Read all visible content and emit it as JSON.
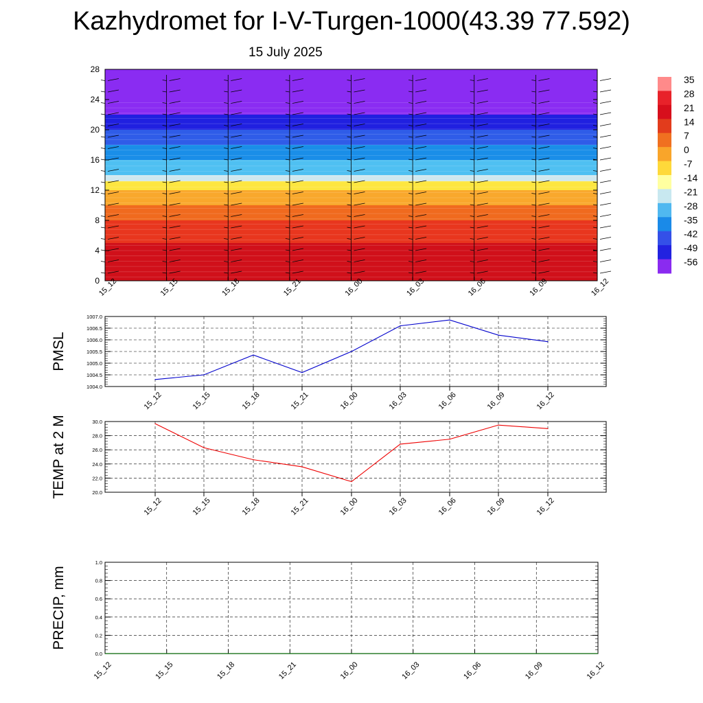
{
  "header": {
    "title": "Kazhydromet for I-V-Turgen-1000(43.39 77.592)",
    "subtitle": "15 July 2025"
  },
  "chart_data": [
    {
      "type": "heatmap",
      "name": "cross-section",
      "y_ticks": [
        "0",
        "4",
        "8",
        "12",
        "16",
        "20",
        "24",
        "28"
      ],
      "ylim": [
        0,
        28
      ],
      "x_ticks": [
        "15_12",
        "15_15",
        "15_18",
        "15_21",
        "16_00",
        "16_03",
        "16_06",
        "16_09",
        "16_12"
      ],
      "colorbar": {
        "labels": [
          "35",
          "28",
          "21",
          "14",
          "7",
          "0",
          "-7",
          "-14",
          "-21",
          "-28",
          "-35",
          "-42",
          "-49",
          "-56"
        ],
        "colors": [
          "#ff8a8a",
          "#e8222a",
          "#d70f1c",
          "#e23c1c",
          "#f07020",
          "#f9a52a",
          "#fed93a",
          "#ffffa0",
          "#c8e8f0",
          "#50b8f0",
          "#1a8ae8",
          "#3450e8",
          "#2222e0",
          "#8a2bf0"
        ]
      },
      "bands": [
        {
          "from": 0,
          "to": 5,
          "color": "#d0101a"
        },
        {
          "from": 5,
          "to": 8,
          "color": "#e8361e"
        },
        {
          "from": 8,
          "to": 10,
          "color": "#f06a1e"
        },
        {
          "from": 10,
          "to": 12,
          "color": "#f9a82c"
        },
        {
          "from": 12,
          "to": 13.2,
          "color": "#fde640"
        },
        {
          "from": 13.2,
          "to": 14,
          "color": "#cfe8ef"
        },
        {
          "from": 14,
          "to": 16,
          "color": "#4fc0f2"
        },
        {
          "from": 16,
          "to": 18,
          "color": "#1a8ee8"
        },
        {
          "from": 18,
          "to": 20,
          "color": "#2f5ce8"
        },
        {
          "from": 20,
          "to": 22,
          "color": "#2020e0"
        },
        {
          "from": 22,
          "to": 28,
          "color": "#8a2cf2"
        }
      ]
    },
    {
      "type": "line",
      "ylabel": "PMSL",
      "categories": [
        "15_12",
        "15_15",
        "15_18",
        "15_21",
        "16_00",
        "16_03",
        "16_06",
        "16_09",
        "16_12"
      ],
      "values": [
        1004.3,
        1004.5,
        1005.35,
        1004.6,
        1005.5,
        1006.6,
        1006.85,
        1006.2,
        1005.92
      ],
      "ylim": [
        1004.0,
        1007.0
      ],
      "y_ticks": [
        "1004.0",
        "1004.5",
        "1005.0",
        "1005.5",
        "1006.0",
        "1006.5",
        "1007.0"
      ],
      "color": "#0000cc"
    },
    {
      "type": "line",
      "ylabel": "TEMP at 2 M",
      "categories": [
        "15_12",
        "15_15",
        "15_18",
        "15_21",
        "16_00",
        "16_03",
        "16_06",
        "16_09",
        "16_12"
      ],
      "values": [
        29.7,
        26.3,
        24.6,
        23.6,
        21.5,
        26.8,
        27.5,
        29.5,
        29.0
      ],
      "ylim": [
        20.0,
        30.0
      ],
      "y_ticks": [
        "20.0",
        "22.0",
        "24.0",
        "26.0",
        "28.0",
        "30.0"
      ],
      "color": "#ee0000"
    },
    {
      "type": "line",
      "ylabel": "PRECIP, mm",
      "categories": [
        "15_12",
        "15_15",
        "15_18",
        "15_21",
        "16_00",
        "16_03",
        "16_06",
        "16_09",
        "16_12"
      ],
      "values": [
        0,
        0,
        0,
        0,
        0,
        0,
        0,
        0,
        0
      ],
      "ylim": [
        0.0,
        1.0
      ],
      "y_ticks": [
        "0.0",
        "0.2",
        "0.4",
        "0.6",
        "0.8",
        "1.0"
      ],
      "color": "#006400"
    }
  ]
}
